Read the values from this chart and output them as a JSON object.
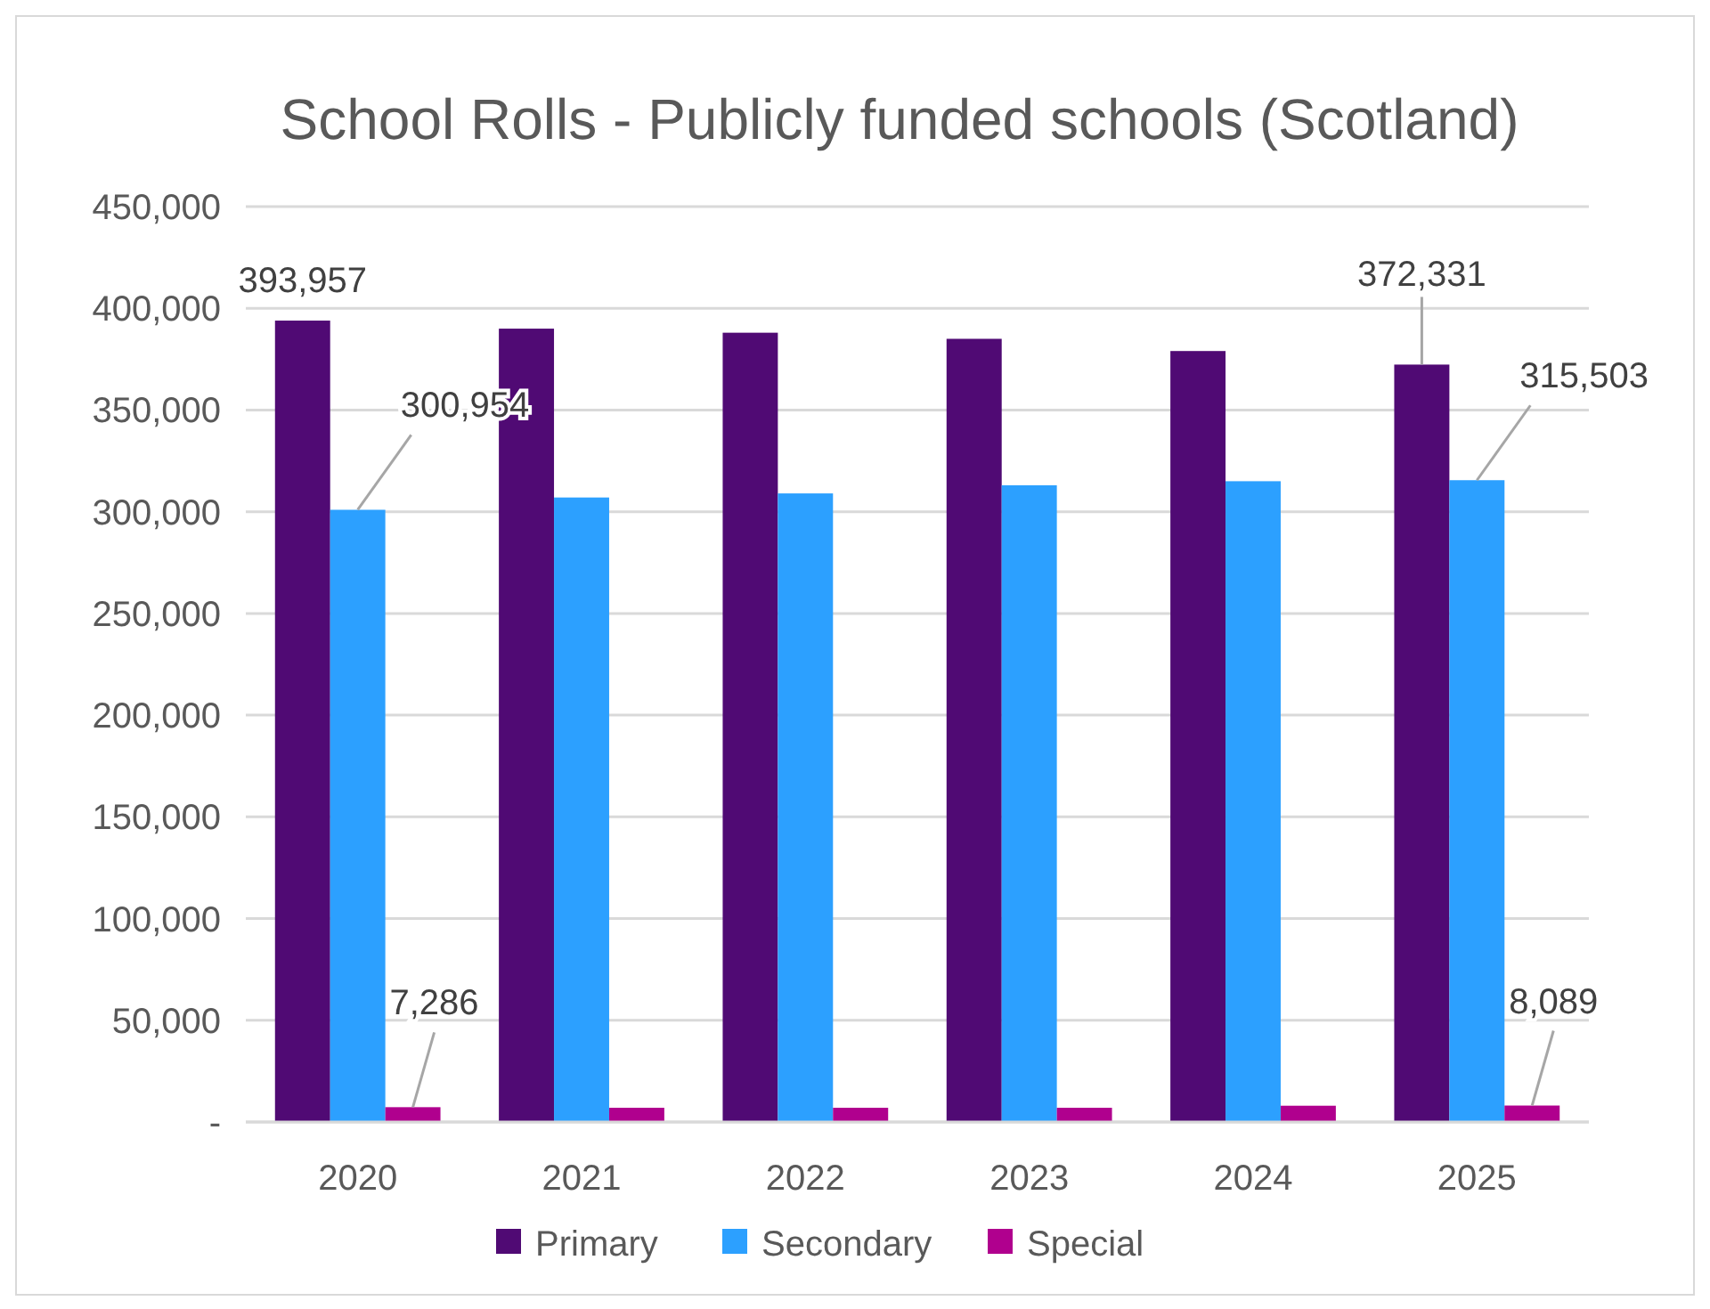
{
  "chart_data": {
    "type": "bar",
    "title": "School Rolls - Publicly funded schools (Scotland)",
    "categories": [
      "2020",
      "2021",
      "2022",
      "2023",
      "2024",
      "2025"
    ],
    "series": [
      {
        "name": "Primary",
        "color": "#500a74",
        "values": [
          393957,
          390000,
          388000,
          385000,
          379000,
          372331
        ],
        "value_labels": [
          "393,957",
          null,
          null,
          null,
          null,
          "372,331"
        ]
      },
      {
        "name": "Secondary",
        "color": "#2ca0ff",
        "values": [
          300954,
          307000,
          309000,
          313000,
          315000,
          315503
        ],
        "value_labels": [
          "300,954",
          null,
          null,
          null,
          null,
          "315,503"
        ]
      },
      {
        "name": "Special",
        "color": "#b0008e",
        "values": [
          7286,
          7000,
          7000,
          7000,
          8000,
          8089
        ],
        "value_labels": [
          "7,286",
          null,
          null,
          null,
          null,
          "8,089"
        ]
      }
    ],
    "ylim": [
      0,
      450000
    ],
    "yticks": [
      {
        "value": 0,
        "label": "-"
      },
      {
        "value": 50000,
        "label": "50,000"
      },
      {
        "value": 100000,
        "label": "100,000"
      },
      {
        "value": 150000,
        "label": "150,000"
      },
      {
        "value": 200000,
        "label": "200,000"
      },
      {
        "value": 250000,
        "label": "250,000"
      },
      {
        "value": 300000,
        "label": "300,000"
      },
      {
        "value": 350000,
        "label": "350,000"
      },
      {
        "value": 400000,
        "label": "400,000"
      },
      {
        "value": 450000,
        "label": "450,000"
      }
    ],
    "grid": "y",
    "legend": "bottom"
  }
}
